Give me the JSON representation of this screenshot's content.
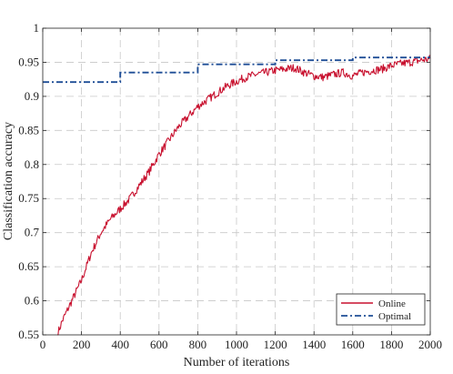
{
  "chart_data": {
    "type": "line",
    "title": "",
    "xlabel": "Number of iterations",
    "ylabel": "Classification accuracy",
    "xlim": [
      0,
      2000
    ],
    "ylim": [
      0.55,
      1
    ],
    "x_ticks": [
      0,
      200,
      400,
      600,
      800,
      1000,
      1200,
      1400,
      1600,
      1800,
      2000
    ],
    "y_ticks": [
      0.55,
      0.6,
      0.65,
      0.7,
      0.75,
      0.8,
      0.85,
      0.9,
      0.95,
      1
    ],
    "y_tick_labels": [
      "0.55",
      "0.6",
      "0.65",
      "0.7",
      "0.75",
      "0.8",
      "0.85",
      "0.9",
      "0.95",
      "1"
    ],
    "grid": true,
    "legend_position": "bottom-right",
    "series": [
      {
        "name": "Online",
        "color": "#c8102e",
        "style": "solid",
        "x": [
          75,
          100,
          150,
          200,
          250,
          300,
          350,
          400,
          450,
          500,
          550,
          600,
          650,
          700,
          750,
          800,
          850,
          900,
          950,
          1000,
          1050,
          1100,
          1150,
          1200,
          1250,
          1300,
          1350,
          1400,
          1450,
          1500,
          1550,
          1600,
          1650,
          1700,
          1750,
          1800,
          1850,
          1900,
          1950,
          2000
        ],
        "y": [
          0.55,
          0.57,
          0.6,
          0.63,
          0.67,
          0.7,
          0.72,
          0.735,
          0.75,
          0.77,
          0.79,
          0.815,
          0.835,
          0.855,
          0.87,
          0.885,
          0.895,
          0.905,
          0.915,
          0.922,
          0.928,
          0.932,
          0.935,
          0.938,
          0.94,
          0.942,
          0.935,
          0.93,
          0.928,
          0.932,
          0.935,
          0.93,
          0.935,
          0.938,
          0.94,
          0.945,
          0.948,
          0.95,
          0.953,
          0.955
        ]
      },
      {
        "name": "Optimal",
        "color": "#1f4e96",
        "style": "dash-dot",
        "x": [
          0,
          400,
          400,
          800,
          800,
          1200,
          1200,
          1600,
          1600,
          2000
        ],
        "y": [
          0.921,
          0.921,
          0.935,
          0.935,
          0.947,
          0.947,
          0.953,
          0.953,
          0.957,
          0.957
        ]
      }
    ]
  }
}
